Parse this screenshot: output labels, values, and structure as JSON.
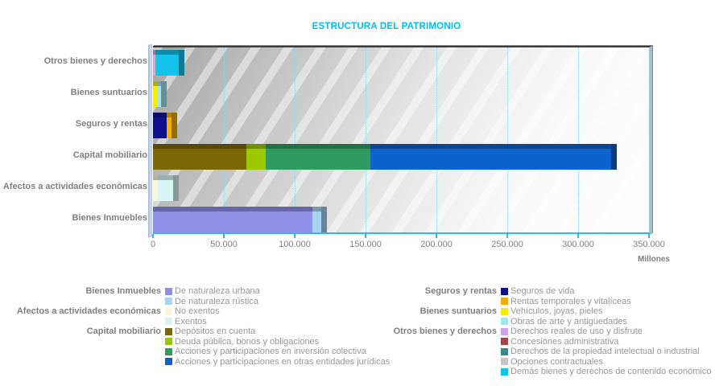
{
  "title": "ESTRUCTURA DEL PATRIMONIO",
  "axis": {
    "unit_label": "Millones",
    "max": 350000,
    "step": 50000,
    "ticks": [
      "0",
      "50.000",
      "100.000",
      "150.000",
      "200.000",
      "250.000",
      "300.000",
      "350.000"
    ]
  },
  "colors": {
    "title": "#00BFEF",
    "axis_line": "#2FB7E8",
    "grid": "#8FD6F2",
    "axis_text": "#808080",
    "legend_text": "#979797"
  },
  "chart_data": {
    "type": "bar",
    "orientation": "horizontal",
    "stacked": true,
    "title": "ESTRUCTURA DEL PATRIMONIO",
    "xlabel": "Millones",
    "xlim": [
      0,
      350000
    ],
    "grid": true,
    "categories_top_to_bottom": [
      "Otros bienes y derechos",
      "Bienes suntuarios",
      "Seguros y rentas",
      "Capital mobiliario",
      "Afectos a actividades económicas",
      "Bienes Inmuebles"
    ],
    "rows": [
      {
        "category": "Otros bienes y derechos",
        "total": 18450,
        "segments": [
          {
            "label": "Derechos reales de uso y disfrute",
            "value": 900,
            "color": "#C9A4EA"
          },
          {
            "label": "Concesiones administrativa",
            "value": 150,
            "color": "#A04545"
          },
          {
            "label": "Derechos de la propiedad intelectual o industrial",
            "value": 250,
            "color": "#37898C"
          },
          {
            "label": "Opciones contractuales",
            "value": 150,
            "color": "#C4C4C4"
          },
          {
            "label": "Demás bienes y derechos de contenido económico",
            "value": 17000,
            "color": "#12C4EC"
          }
        ]
      },
      {
        "category": "Bienes suntuarios",
        "total": 5500,
        "segments": [
          {
            "label": "Vehículos, joyas, pieles",
            "value": 3600,
            "color": "#F8EC00"
          },
          {
            "label": "Obras de arte y antigüedades",
            "value": 1900,
            "color": "#9FE8F0"
          }
        ]
      },
      {
        "category": "Seguros y rentas",
        "total": 13100,
        "segments": [
          {
            "label": "Seguros de vida",
            "value": 9500,
            "color": "#10108C"
          },
          {
            "label": "Rentas temporales y vitalíceas",
            "value": 3600,
            "color": "#EFAE08"
          }
        ]
      },
      {
        "category": "Capital mobiliario",
        "total": 323500,
        "segments": [
          {
            "label": "Depósitos en cuenta",
            "value": 66000,
            "color": "#7D6604"
          },
          {
            "label": "Deuda pública, bonos y obligaciones",
            "value": 13500,
            "color": "#9CC800"
          },
          {
            "label": "Acciones y participaciones en inversión colectiva",
            "value": 74000,
            "color": "#2F9B60"
          },
          {
            "label": "Acciones y participaciones en otras entidades jurídicas",
            "value": 170000,
            "color": "#0D63CE"
          }
        ]
      },
      {
        "category": "Afectos a actividades económicas",
        "total": 14400,
        "segments": [
          {
            "label": "No exentos",
            "value": 3400,
            "color": "#F8F8D8"
          },
          {
            "label": "Exentos",
            "value": 11000,
            "color": "#D8F6F6"
          }
        ]
      },
      {
        "category": "Bienes Inmuebles",
        "total": 119000,
        "segments": [
          {
            "label": "De naturaleza urbana",
            "value": 112500,
            "color": "#8F8FE8"
          },
          {
            "label": "De naturaleza rústica",
            "value": 6500,
            "color": "#A5D5F2"
          }
        ]
      }
    ]
  },
  "legend": {
    "left": [
      {
        "group": "Bienes Inmuebles",
        "label": "De naturaleza urbana",
        "color": "#8F8FE8"
      },
      {
        "group": "",
        "label": "De naturaleza rústica",
        "color": "#A5D5F2"
      },
      {
        "group": "Afectos a actividades económicas",
        "label": "No exentos",
        "color": "#F8F8D8"
      },
      {
        "group": "",
        "label": "Exentos",
        "color": "#D8F6F6"
      },
      {
        "group": "Capital mobiliario",
        "label": "Depósitos en cuenta",
        "color": "#7D6604"
      },
      {
        "group": "",
        "label": "Deuda pública, bonos y obligaciones",
        "color": "#9CC800"
      },
      {
        "group": "",
        "label": "Acciones y participaciones en inversión colectiva",
        "color": "#2F9B60"
      },
      {
        "group": "",
        "label": "Acciones y participaciones en otras entidades jurídicas",
        "color": "#0D63CE"
      }
    ],
    "right": [
      {
        "group": "Seguros y rentas",
        "label": "Seguros de vida",
        "color": "#10108C"
      },
      {
        "group": "",
        "label": "Rentas temporales y vitalíceas",
        "color": "#EFAE08"
      },
      {
        "group": "Bienes suntuarios",
        "label": "Vehículos, joyas, pieles",
        "color": "#F8EC00"
      },
      {
        "group": "",
        "label": "Obras de arte y antigüedades",
        "color": "#9FE8F0"
      },
      {
        "group": "Otros bienes y derechos",
        "label": "Derechos reales de uso y disfrute",
        "color": "#C9A4EA"
      },
      {
        "group": "",
        "label": "Concesiones administrativa",
        "color": "#A04545"
      },
      {
        "group": "",
        "label": "Derechos de la propiedad intelectual o industrial",
        "color": "#37898C"
      },
      {
        "group": "",
        "label": "Opciones contractuales",
        "color": "#C4C4C4"
      },
      {
        "group": "",
        "label": "Demás bienes y derechos de contenido económico",
        "color": "#12C4EC"
      }
    ]
  }
}
